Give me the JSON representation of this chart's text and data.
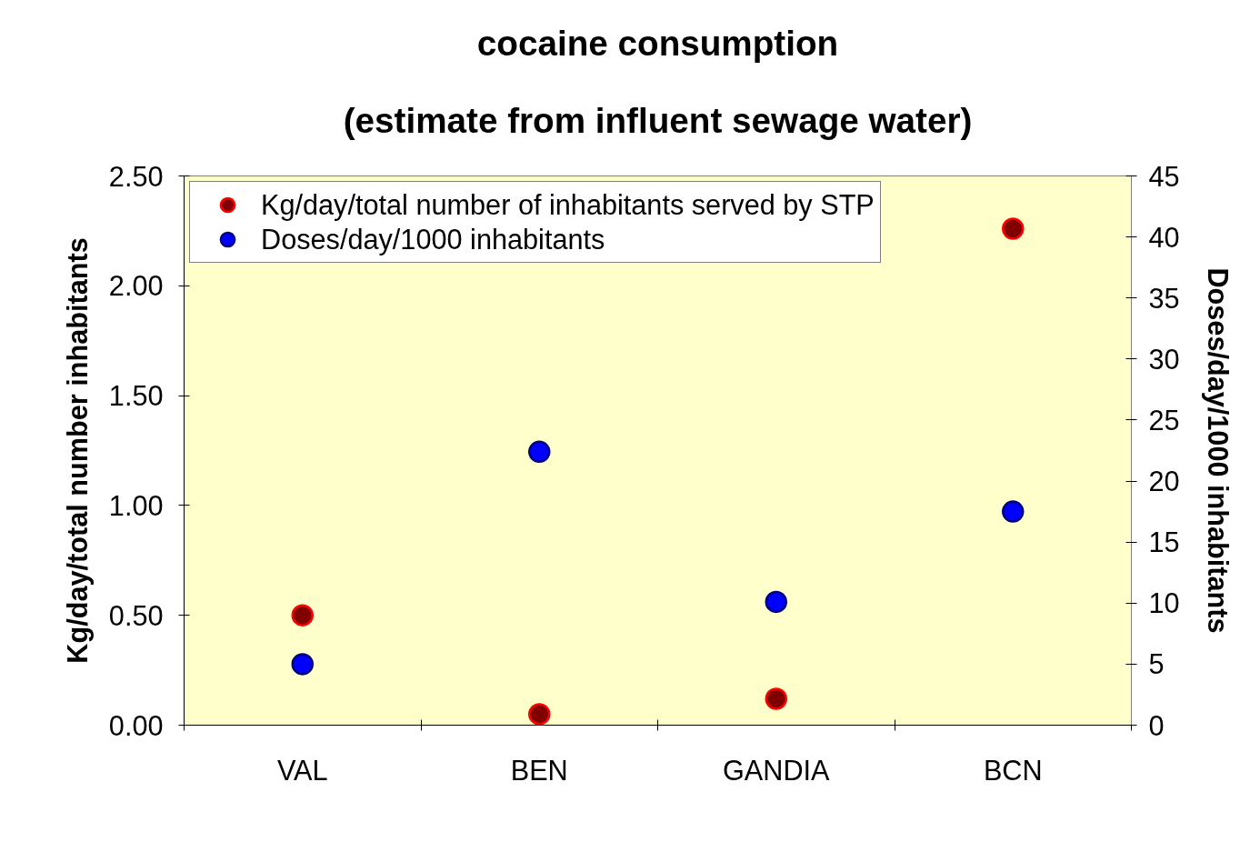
{
  "chart_data": {
    "type": "scatter",
    "title": "cocaine consumption",
    "subtitle": "(estimate from influent sewage water)",
    "ylabel": "Kg/day/total number inhabitants",
    "y2label": "Doses/day/1000 inhabitants",
    "categories": [
      "VAL",
      "BEN",
      "GANDIA",
      "BCN"
    ],
    "series": [
      {
        "name": "Kg/day/total number of inhabitants served by STP",
        "color": "#800000",
        "values": [
          0.5,
          0.05,
          0.12,
          2.26
        ]
      },
      {
        "name": "Doses/day/1000 inhabitants",
        "color": "#0000ff",
        "values": [
          5.0,
          22.4,
          10.1,
          17.5
        ],
        "axis": "y2"
      }
    ],
    "ylim": [
      0,
      2.5
    ],
    "yticks": [
      {
        "value": 0,
        "label": "0.00"
      },
      {
        "value": 0.5,
        "label": "0.50"
      },
      {
        "value": 1,
        "label": "1.00"
      },
      {
        "value": 1.5,
        "label": "1.50"
      },
      {
        "value": 2,
        "label": "2.00"
      },
      {
        "value": 2.5,
        "label": "2.50"
      }
    ],
    "y2lim": [
      0,
      45
    ],
    "y2ticks": [
      0,
      5,
      10,
      15,
      20,
      25,
      30,
      35,
      40,
      45
    ],
    "legend": "top left",
    "marker": "circle"
  }
}
